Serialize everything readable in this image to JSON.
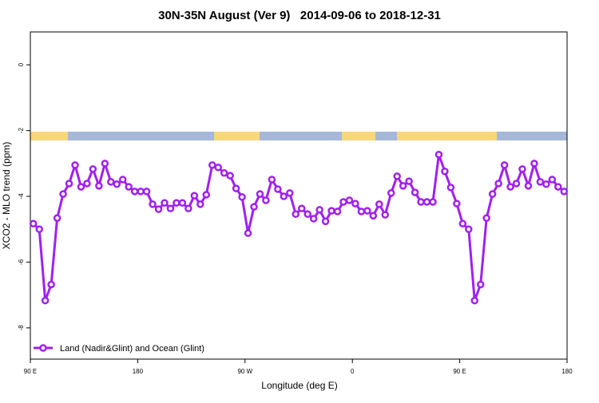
{
  "chart_data": {
    "type": "line",
    "title": "30N-35N August (Ver 9)   2014-09-06 to 2018-12-31",
    "x_label": "Longitude (deg E)",
    "y_label": "XCO2 - MLO trend (ppm)",
    "x": [
      92.5,
      97.5,
      102.5,
      107.5,
      112.5,
      117.5,
      122.5,
      127.5,
      132.5,
      137.5,
      142.5,
      147.5,
      152.5,
      157.5,
      162.5,
      167.5,
      172.5,
      177.5,
      182.5,
      187.5,
      192.5,
      197.5,
      202.5,
      207.5,
      212.5,
      217.5,
      222.5,
      227.5,
      232.5,
      237.5,
      242.5,
      247.5,
      252.5,
      257.5,
      262.5,
      267.5,
      272.5,
      277.5,
      282.5,
      287.5,
      292.5,
      297.5,
      302.5,
      307.5,
      312.5,
      317.5,
      322.5,
      327.5,
      332.5,
      337.5,
      342.5,
      347.5,
      352.5,
      357.5,
      362.5,
      367.5,
      372.5,
      377.5,
      382.5,
      387.5,
      392.5,
      397.5,
      402.5,
      407.5,
      412.5,
      417.5,
      422.5,
      427.5,
      432.5,
      437.5,
      442.5,
      447.5,
      452.5,
      457.5,
      462.5,
      467.5,
      472.5,
      477.5,
      482.5,
      487.5,
      492.5,
      497.5,
      502.5,
      507.5,
      512.5,
      517.5,
      522.5,
      527.5,
      532.5,
      537.5
    ],
    "series": [
      {
        "name": "Land (Nadir&Glint) and Ocean (Glint)",
        "color": "#a020f0",
        "values": [
          -4.83,
          -5.0,
          -7.17,
          -6.68,
          -4.66,
          -3.93,
          -3.61,
          -3.05,
          -3.71,
          -3.61,
          -3.17,
          -3.68,
          -3.0,
          -3.56,
          -3.63,
          -3.49,
          -3.71,
          -3.85,
          -3.85,
          -3.85,
          -4.24,
          -4.39,
          -4.2,
          -4.37,
          -4.2,
          -4.2,
          -4.37,
          -3.98,
          -4.24,
          -3.95,
          -3.05,
          -3.12,
          -3.29,
          -3.37,
          -3.76,
          -4.02,
          -5.12,
          -4.32,
          -3.93,
          -4.12,
          -3.49,
          -3.78,
          -4.0,
          -3.9,
          -4.54,
          -4.37,
          -4.54,
          -4.68,
          -4.41,
          -4.76,
          -4.44,
          -4.46,
          -4.17,
          -4.12,
          -4.22,
          -4.46,
          -4.44,
          -4.59,
          -4.24,
          -4.56,
          -3.9,
          -3.39,
          -3.68,
          -3.54,
          -3.88,
          -4.17,
          -4.17,
          -4.17,
          -2.73,
          -3.24,
          -3.73,
          -4.22,
          -4.83,
          -5.0,
          -7.17,
          -6.68,
          -4.66,
          -3.93,
          -3.61,
          -3.05,
          -3.71,
          -3.61,
          -3.17,
          -3.68,
          -3.0,
          -3.56,
          -3.63,
          -3.49,
          -3.71,
          -3.85
        ]
      }
    ],
    "xlim": [
      90,
      540
    ],
    "xticks": [
      {
        "value": 90,
        "label": "90 E"
      },
      180,
      {
        "value": 270,
        "label": "90 W"
      },
      {
        "value": 360,
        "label": "0"
      },
      {
        "value": 450,
        "label": "90 E"
      },
      {
        "value": 540,
        "label": "180"
      }
    ],
    "ylim": [
      -8.95,
      1.0
    ],
    "yticks": [
      0,
      -2,
      -4,
      -6,
      -8
    ],
    "legend": "bottom-left"
  }
}
